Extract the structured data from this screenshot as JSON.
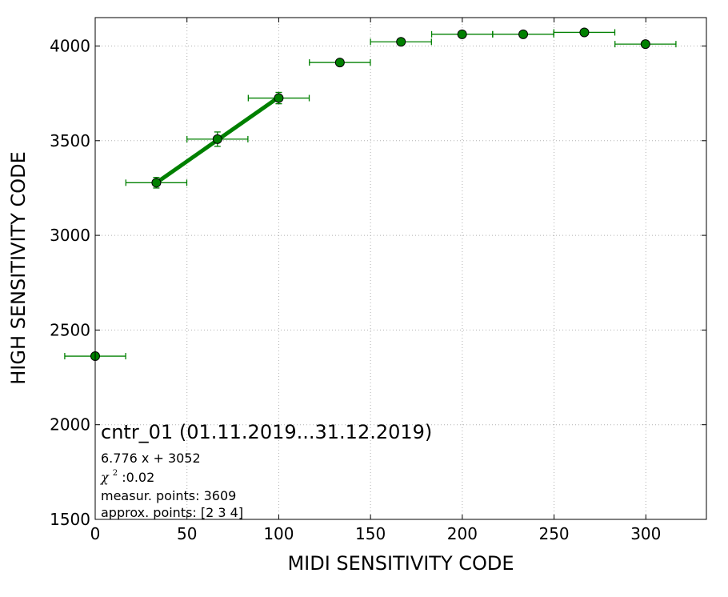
{
  "chart_data": {
    "type": "scatter",
    "xlabel": "MIDI SENSITIVITY CODE",
    "ylabel": "HIGH SENSITIVITY CODE",
    "xlim": [
      0,
      333
    ],
    "ylim": [
      1500,
      4150
    ],
    "x_ticks": [
      0,
      50,
      100,
      150,
      200,
      250,
      300
    ],
    "y_ticks": [
      1500,
      2000,
      2500,
      3000,
      3500,
      4000
    ],
    "grid": true,
    "colors": {
      "series": "#008000",
      "marker_edge": "#000000",
      "grid": "#b0b0b0"
    },
    "series": [
      {
        "points": [
          {
            "x": 0,
            "y": 2362,
            "xerr": 16.6,
            "yerr": 0
          },
          {
            "x": 33.3,
            "y": 3278,
            "xerr": 16.6,
            "yerr": 28
          },
          {
            "x": 66.6,
            "y": 3508,
            "xerr": 16.6,
            "yerr": 38
          },
          {
            "x": 100,
            "y": 3725,
            "xerr": 16.6,
            "yerr": 30
          },
          {
            "x": 133.3,
            "y": 3913,
            "xerr": 16.6,
            "yerr": 0
          },
          {
            "x": 166.6,
            "y": 4022,
            "xerr": 16.6,
            "yerr": 0
          },
          {
            "x": 199.9,
            "y": 4062,
            "xerr": 16.6,
            "yerr": 0
          },
          {
            "x": 233.2,
            "y": 4062,
            "xerr": 16.6,
            "yerr": 0
          },
          {
            "x": 266.5,
            "y": 4072,
            "xerr": 16.6,
            "yerr": 0
          },
          {
            "x": 299.8,
            "y": 4010,
            "xerr": 16.6,
            "yerr": 0
          }
        ]
      }
    ],
    "fit_line": {
      "x": [
        33.3,
        100
      ],
      "slope": 6.776,
      "intercept": 3052
    },
    "annotations": {
      "title": "cntr_01 (01.11.2019...31.12.2019)",
      "equation": "6.776 x + 3052",
      "chi_symbol": "χ",
      "chi_sup": "2",
      "chi_value": " :0.02",
      "measur_points": "measur. points: 3609",
      "approx_points": "approx. points: [2 3 4]"
    }
  }
}
